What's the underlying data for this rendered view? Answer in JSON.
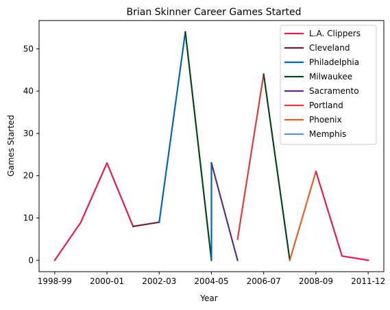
{
  "chart_data": {
    "type": "line",
    "title": "Brian Skinner Career Games Started",
    "xlabel": "Year",
    "ylabel": "Games Started",
    "x_ticks": [
      "1998-99",
      "2000-01",
      "2002-03",
      "2004-05",
      "2006-07",
      "2008-09",
      "2011-12"
    ],
    "x_tick_positions": [
      0,
      2,
      4,
      6,
      8,
      10,
      12
    ],
    "xlim": [
      -0.6,
      12.6
    ],
    "y_ticks": [
      0,
      10,
      20,
      30,
      40,
      50
    ],
    "ylim": [
      -2.7,
      56.7
    ],
    "legend_position": "top-right",
    "grid": false,
    "series": [
      {
        "name": "L.A. Clippers",
        "color": "#e31a4f",
        "points": [
          [
            0,
            0
          ],
          [
            1,
            9
          ],
          [
            2,
            23
          ],
          [
            3,
            8
          ]
        ]
      },
      {
        "name": "Cleveland",
        "color": "#6b1f3f",
        "points": [
          [
            3,
            8
          ],
          [
            4,
            9
          ]
        ]
      },
      {
        "name": "Philadelphia",
        "color": "#0066b3",
        "points": [
          [
            4,
            9
          ],
          [
            5,
            54
          ]
        ]
      },
      {
        "name": "Milwaukee",
        "color": "#00471b",
        "points": [
          [
            5,
            54
          ],
          [
            6,
            0
          ]
        ]
      },
      {
        "name": "Philadelphia",
        "color": "#0066b3",
        "points": [
          [
            6,
            0
          ],
          [
            6,
            23
          ]
        ],
        "legend": false
      },
      {
        "name": "Sacramento",
        "color": "#5a2d82",
        "points": [
          [
            6,
            23
          ],
          [
            7,
            0
          ]
        ]
      },
      {
        "name": "Portland",
        "color": "#e03a3e",
        "points": [
          [
            7,
            5
          ],
          [
            8,
            44
          ]
        ]
      },
      {
        "name": "Milwaukee",
        "color": "#00471b",
        "points": [
          [
            8,
            44
          ],
          [
            9,
            0
          ]
        ],
        "legend": false
      },
      {
        "name": "Phoenix",
        "color": "#e56020",
        "points": [
          [
            9,
            0
          ],
          [
            10,
            21
          ]
        ]
      },
      {
        "name": "L.A. Clippers",
        "color": "#e31a4f",
        "points": [
          [
            10,
            21
          ],
          [
            11,
            1
          ],
          [
            12,
            0
          ]
        ],
        "legend": false
      },
      {
        "name": "Memphis",
        "color": "#5d8fcb",
        "points": [],
        "legend": true
      }
    ]
  }
}
